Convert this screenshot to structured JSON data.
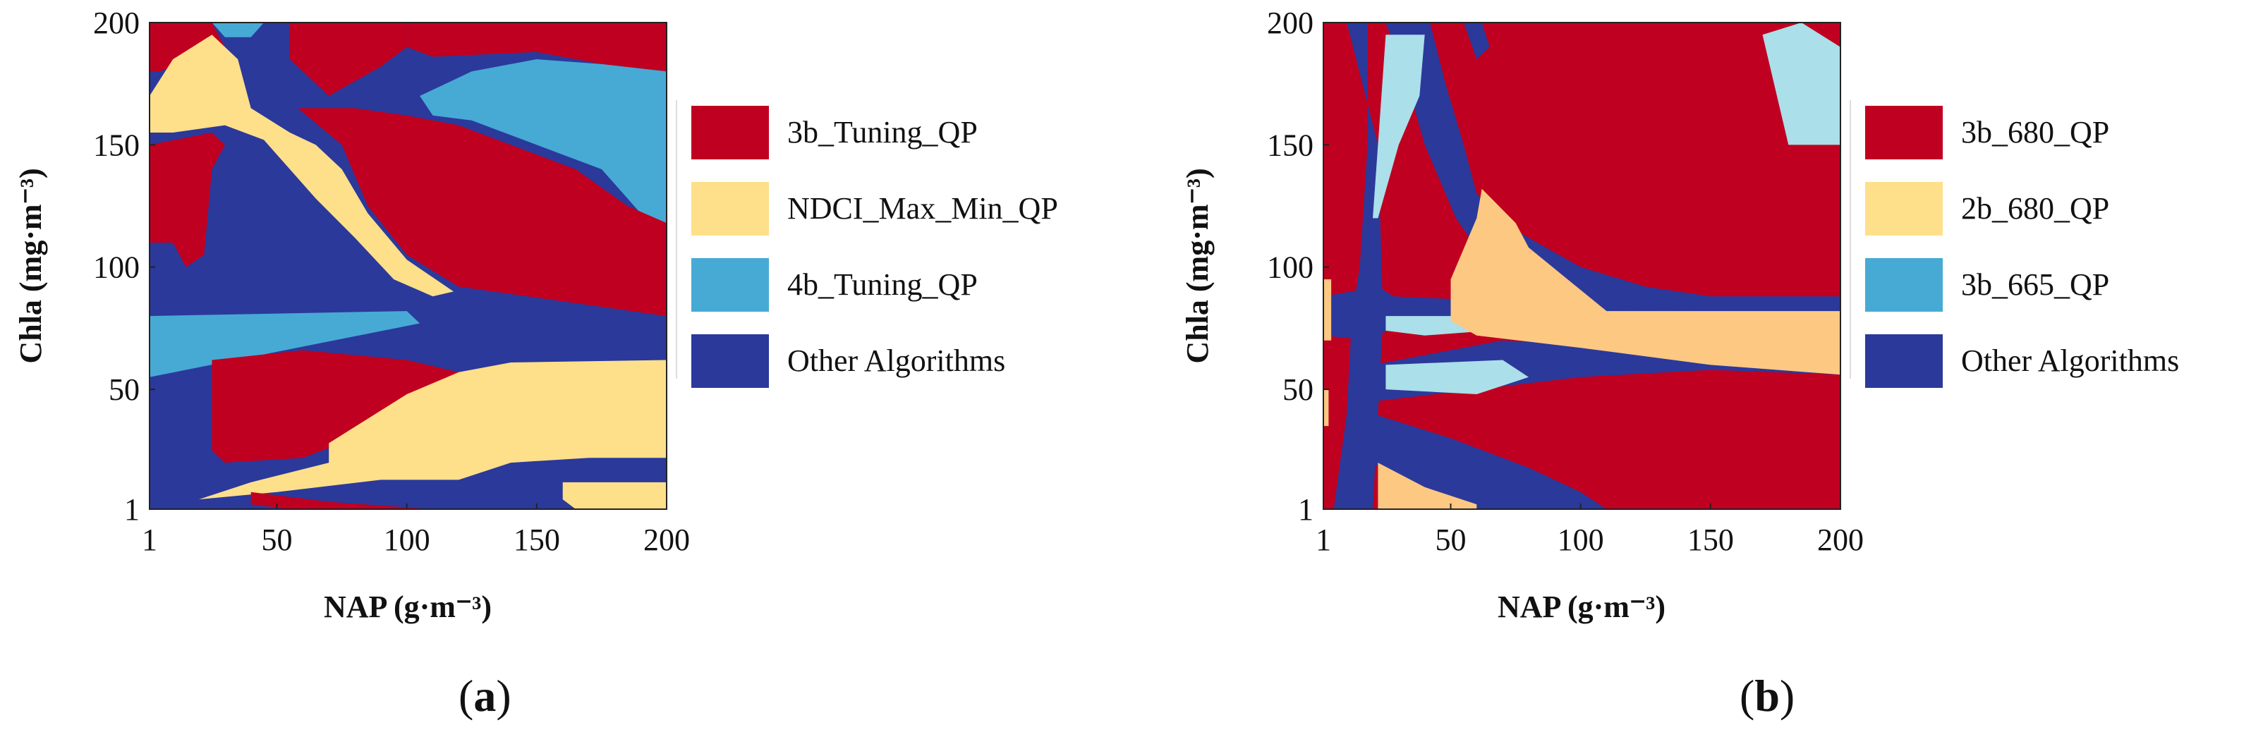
{
  "colors": {
    "red": "#c00020",
    "yellow": "#fedf8a",
    "orange": "#fdc882",
    "light_blue": "#47aad4",
    "pale_blue": "#abdfe9",
    "dark_blue": "#2b399b"
  },
  "chart_data": [
    {
      "type": "heatmap",
      "panel_label": "a",
      "xlabel": "NAP (g·m⁻³)",
      "ylabel": "Chla (mg·m⁻³)",
      "xlim": [
        1,
        200
      ],
      "ylim": [
        1,
        200
      ],
      "xticks": [
        "1",
        "50",
        "100",
        "150",
        "200"
      ],
      "yticks": [
        "1",
        "50",
        "100",
        "150",
        "200"
      ],
      "legend": [
        {
          "label": "3b_Tuning_QP",
          "color": "#c00020"
        },
        {
          "label": "NDCI_Max_Min_QP",
          "color": "#fedf8a"
        },
        {
          "label": "4b_Tuning_QP",
          "color": "#47aad4"
        },
        {
          "label": "Other Algorithms",
          "color": "#2b399b"
        }
      ],
      "background_class": "Other Algorithms",
      "regions": [
        {
          "class": "3b_Tuning_QP",
          "points": [
            [
              1,
              200
            ],
            [
              25,
              200
            ],
            [
              30,
              190
            ],
            [
              5,
              180
            ],
            [
              1,
              180
            ]
          ]
        },
        {
          "class": "3b_Tuning_QP",
          "points": [
            [
              55,
              200
            ],
            [
              100,
              200
            ],
            [
              100,
              190
            ],
            [
              90,
              182
            ],
            [
              70,
              170
            ],
            [
              55,
              185
            ]
          ]
        },
        {
          "class": "4b_Tuning_QP",
          "points": [
            [
              25,
              200
            ],
            [
              45,
              200
            ],
            [
              40,
              194
            ],
            [
              30,
              194
            ]
          ]
        },
        {
          "class": "3b_Tuning_QP",
          "points": [
            [
              100,
              200
            ],
            [
              200,
              200
            ],
            [
              200,
              180
            ],
            [
              175,
              183
            ],
            [
              150,
              188
            ],
            [
              110,
              186
            ],
            [
              100,
              190
            ]
          ]
        },
        {
          "class": "NDCI_Max_Min_QP",
          "points": [
            [
              1,
              170
            ],
            [
              10,
              185
            ],
            [
              25,
              195
            ],
            [
              35,
              185
            ],
            [
              40,
              165
            ],
            [
              55,
              155
            ],
            [
              65,
              150
            ],
            [
              75,
              140
            ],
            [
              85,
              122
            ],
            [
              100,
              103
            ],
            [
              118,
              90
            ],
            [
              110,
              88
            ],
            [
              95,
              95
            ],
            [
              80,
              112
            ],
            [
              65,
              128
            ],
            [
              55,
              140
            ],
            [
              45,
              152
            ],
            [
              30,
              158
            ],
            [
              10,
              155
            ],
            [
              1,
              155
            ]
          ]
        },
        {
          "class": "4b_Tuning_QP",
          "points": [
            [
              105,
              170
            ],
            [
              125,
              180
            ],
            [
              150,
              185
            ],
            [
              175,
              183
            ],
            [
              200,
              180
            ],
            [
              200,
              118
            ],
            [
              190,
              122
            ],
            [
              175,
              140
            ],
            [
              150,
              150
            ],
            [
              125,
              160
            ],
            [
              110,
              162
            ]
          ]
        },
        {
          "class": "3b_Tuning_QP",
          "points": [
            [
              58,
              165
            ],
            [
              75,
              150
            ],
            [
              85,
              125
            ],
            [
              100,
              105
            ],
            [
              120,
              92
            ],
            [
              200,
              80
            ],
            [
              200,
              118
            ],
            [
              185,
              125
            ],
            [
              165,
              140
            ],
            [
              140,
              150
            ],
            [
              120,
              158
            ],
            [
              100,
              162
            ],
            [
              80,
              165
            ]
          ]
        },
        {
          "class": "3b_Tuning_QP",
          "points": [
            [
              1,
              150
            ],
            [
              25,
              155
            ],
            [
              30,
              150
            ],
            [
              25,
              140
            ],
            [
              22,
              105
            ],
            [
              15,
              100
            ],
            [
              10,
              110
            ],
            [
              1,
              110
            ]
          ]
        },
        {
          "class": "4b_Tuning_QP",
          "points": [
            [
              1,
              80
            ],
            [
              100,
              82
            ],
            [
              105,
              77
            ],
            [
              1,
              55
            ]
          ]
        },
        {
          "class": "3b_Tuning_QP",
          "points": [
            [
              25,
              62
            ],
            [
              60,
              66
            ],
            [
              100,
              62
            ],
            [
              120,
              57
            ],
            [
              105,
              45
            ],
            [
              80,
              30
            ],
            [
              60,
              22
            ],
            [
              30,
              20
            ],
            [
              25,
              25
            ]
          ]
        },
        {
          "class": "NDCI_Max_Min_QP",
          "points": [
            [
              70,
              28
            ],
            [
              100,
              48
            ],
            [
              120,
              57
            ],
            [
              140,
              61
            ],
            [
              200,
              62
            ],
            [
              200,
              22
            ],
            [
              170,
              22
            ],
            [
              140,
              20
            ],
            [
              120,
              13
            ],
            [
              90,
              13
            ],
            [
              50,
              8
            ],
            [
              20,
              5
            ],
            [
              40,
              12
            ],
            [
              70,
              20
            ]
          ]
        },
        {
          "class": "NDCI_Max_Min_QP",
          "points": [
            [
              160,
              12
            ],
            [
              200,
              12
            ],
            [
              200,
              1
            ],
            [
              165,
              1
            ],
            [
              160,
              5
            ]
          ]
        },
        {
          "class": "3b_Tuning_QP",
          "points": [
            [
              40,
              8
            ],
            [
              70,
              4
            ],
            [
              110,
              1
            ],
            [
              55,
              1
            ],
            [
              40,
              3
            ]
          ]
        }
      ]
    },
    {
      "type": "heatmap",
      "panel_label": "b",
      "xlabel": "NAP (g·m⁻³)",
      "ylabel": "Chla (mg·m⁻³)",
      "xlim": [
        1,
        200
      ],
      "ylim": [
        1,
        200
      ],
      "xticks": [
        "1",
        "50",
        "100",
        "150",
        "200"
      ],
      "yticks": [
        "1",
        "50",
        "100",
        "150",
        "200"
      ],
      "legend": [
        {
          "label": "3b_680_QP",
          "color": "#c00020"
        },
        {
          "label": "2b_680_QP",
          "color": "#fedf8a"
        },
        {
          "label": "3b_665_QP",
          "color": "#47aad4"
        },
        {
          "label": "Other Algorithms",
          "color": "#2b399b"
        }
      ],
      "background_class": "3b_680_QP",
      "regions": [
        {
          "class": "Other Algorithms",
          "points": [
            [
              25,
              200
            ],
            [
              42,
              200
            ],
            [
              48,
              175
            ],
            [
              55,
              150
            ],
            [
              60,
              130
            ],
            [
              75,
              115
            ],
            [
              100,
              100
            ],
            [
              125,
              92
            ],
            [
              150,
              88
            ],
            [
              200,
              88
            ],
            [
              200,
              78
            ],
            [
              150,
              78
            ],
            [
              120,
              76
            ],
            [
              95,
              82
            ],
            [
              80,
              90
            ],
            [
              65,
              100
            ],
            [
              52,
              120
            ],
            [
              40,
              150
            ],
            [
              32,
              180
            ]
          ]
        },
        {
          "class": "Other Algorithms",
          "points": [
            [
              1,
              88
            ],
            [
              22,
              92
            ],
            [
              28,
              88
            ],
            [
              200,
              80
            ],
            [
              200,
              78
            ],
            [
              28,
              76
            ],
            [
              20,
              70
            ],
            [
              1,
              72
            ]
          ]
        },
        {
          "class": "Other Algorithms",
          "points": [
            [
              10,
              200
            ],
            [
              18,
              200
            ],
            [
              18,
              150
            ],
            [
              15,
              100
            ],
            [
              12,
              80
            ],
            [
              10,
              40
            ],
            [
              5,
              1
            ],
            [
              20,
              1
            ],
            [
              22,
              40
            ],
            [
              24,
              80
            ],
            [
              22,
              150
            ]
          ]
        },
        {
          "class": "Other Algorithms",
          "points": [
            [
              55,
              200
            ],
            [
              60,
              185
            ],
            [
              65,
              190
            ],
            [
              62,
              200
            ]
          ]
        },
        {
          "class": "Other Algorithms",
          "points": [
            [
              20,
              40
            ],
            [
              50,
              30
            ],
            [
              80,
              18
            ],
            [
              100,
              8
            ],
            [
              110,
              1
            ],
            [
              60,
              1
            ],
            [
              30,
              12
            ],
            [
              20,
              20
            ]
          ]
        },
        {
          "class": "Other Algorithms",
          "points": [
            [
              20,
              60
            ],
            [
              70,
              70
            ],
            [
              110,
              68
            ],
            [
              150,
              64
            ],
            [
              200,
              60
            ],
            [
              200,
              56
            ],
            [
              150,
              58
            ],
            [
              100,
              55
            ],
            [
              60,
              50
            ],
            [
              20,
              45
            ]
          ]
        },
        {
          "class": "3b_665_QP",
          "points": [
            [
              25,
              195
            ],
            [
              40,
              195
            ],
            [
              38,
              170
            ],
            [
              30,
              150
            ],
            [
              22,
              120
            ],
            [
              20,
              120
            ],
            [
              22,
              150
            ]
          ]
        },
        {
          "class": "3b_665_QP",
          "points": [
            [
              180,
              150
            ],
            [
              200,
              150
            ],
            [
              200,
              190
            ],
            [
              185,
              200
            ],
            [
              170,
              195
            ]
          ]
        },
        {
          "class": "3b_665_QP",
          "points": [
            [
              25,
              80
            ],
            [
              60,
              80
            ],
            [
              65,
              74
            ],
            [
              40,
              72
            ],
            [
              25,
              74
            ]
          ]
        },
        {
          "class": "3b_665_QP",
          "points": [
            [
              25,
              60
            ],
            [
              70,
              62
            ],
            [
              80,
              55
            ],
            [
              60,
              48
            ],
            [
              25,
              50
            ]
          ]
        },
        {
          "class": "2b_680_QP",
          "points": [
            [
              50,
              95
            ],
            [
              60,
              120
            ],
            [
              62,
              132
            ],
            [
              75,
              118
            ],
            [
              80,
              108
            ],
            [
              95,
              95
            ],
            [
              110,
              82
            ],
            [
              200,
              82
            ],
            [
              200,
              56
            ],
            [
              150,
              60
            ],
            [
              100,
              67
            ],
            [
              60,
              72
            ],
            [
              50,
              78
            ]
          ]
        },
        {
          "class": "2b_680_QP",
          "points": [
            [
              22,
              20
            ],
            [
              40,
              10
            ],
            [
              60,
              3
            ],
            [
              60,
              1
            ],
            [
              22,
              1
            ]
          ]
        },
        {
          "class": "2b_680_QP",
          "points": [
            [
              1,
              95
            ],
            [
              4,
              95
            ],
            [
              4,
              70
            ],
            [
              1,
              70
            ]
          ]
        },
        {
          "class": "2b_680_QP",
          "points": [
            [
              1,
              50
            ],
            [
              3,
              50
            ],
            [
              3,
              35
            ],
            [
              1,
              35
            ]
          ]
        }
      ]
    }
  ],
  "captions": {
    "a": "a",
    "b": "b"
  }
}
